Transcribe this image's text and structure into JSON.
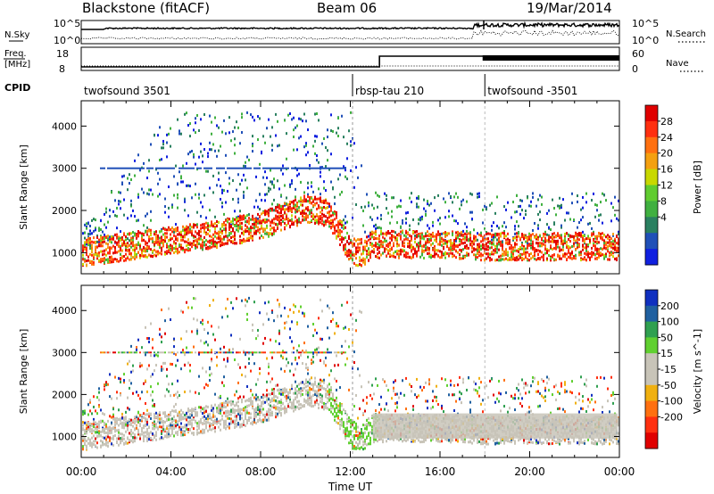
{
  "header": {
    "radar": "Blackstone (fitACF)",
    "beam": "Beam 06",
    "date": "19/Mar/2014"
  },
  "noise_panel": {
    "left_label": "N.Sky",
    "left_ticks": [
      "10^5",
      "10^0"
    ],
    "right_ticks": [
      "10^5",
      "10^0"
    ],
    "right_label": "N.Search"
  },
  "freq_panel": {
    "left_label_1": "Freq.",
    "left_label_2": "[MHz]",
    "left_ticks": [
      "18",
      "8"
    ],
    "right_ticks": [
      "60",
      "0"
    ],
    "right_label": "Nave"
  },
  "cpid": {
    "label": "CPID",
    "segments": [
      {
        "name": "twofsound 3501",
        "start_hour": 0,
        "end_hour": 12.1
      },
      {
        "name": "rbsp-tau 210",
        "start_hour": 12.1,
        "end_hour": 18.0
      },
      {
        "name": "twofsound -3501",
        "start_hour": 18.0,
        "end_hour": 24
      }
    ]
  },
  "chart_data": [
    {
      "type": "heatmap",
      "name": "power",
      "ylabel": "Slant Range [km]",
      "yticks": [
        "1000",
        "2000",
        "3000",
        "4000"
      ],
      "ylim": [
        500,
        4600
      ],
      "xlim": [
        0,
        24
      ],
      "colorbar_label": "Power [dB]",
      "colorbar_ticks": [
        "4",
        "8",
        "12",
        "16",
        "20",
        "24",
        "28"
      ],
      "colorbar_colors": [
        "#1020e0",
        "#2050b8",
        "#2a8060",
        "#40b040",
        "#60cc30",
        "#c8d800",
        "#f4a010",
        "#ff7010",
        "#ff3010",
        "#e00000"
      ],
      "traces": {
        "main_band_km": [
          [
            0,
            950
          ],
          [
            2,
            1100
          ],
          [
            4,
            1250
          ],
          [
            6,
            1400
          ],
          [
            8,
            1600
          ],
          [
            10,
            2000
          ],
          [
            11,
            1900
          ],
          [
            12,
            1000
          ],
          [
            12.5,
            950
          ],
          [
            13,
            1150
          ],
          [
            14,
            1150
          ],
          [
            16,
            1150
          ],
          [
            18,
            1100
          ],
          [
            20,
            1100
          ],
          [
            22,
            1100
          ],
          [
            24,
            1100
          ]
        ],
        "stripe_km": 3000
      }
    },
    {
      "type": "heatmap",
      "name": "velocity",
      "ylabel": "Slant Range [km]",
      "yticks": [
        "1000",
        "2000",
        "3000",
        "4000"
      ],
      "ylim": [
        500,
        4600
      ],
      "xlim": [
        0,
        24
      ],
      "colorbar_label": "Velocity [m s^-1]",
      "colorbar_ticks": [
        "200",
        "100",
        "50",
        "15",
        "-15",
        "-50",
        "-100",
        "-200"
      ],
      "colorbar_colors": [
        "#1030c0",
        "#2060a0",
        "#30a050",
        "#60d030",
        "#c8c4b8",
        "#c8c4b8",
        "#f0b010",
        "#ff7010",
        "#ff3010",
        "#e00000"
      ],
      "xlabel": "Time UT",
      "xticks": [
        "00:00",
        "04:00",
        "08:00",
        "12:00",
        "16:00",
        "20:00",
        "00:00"
      ]
    }
  ]
}
